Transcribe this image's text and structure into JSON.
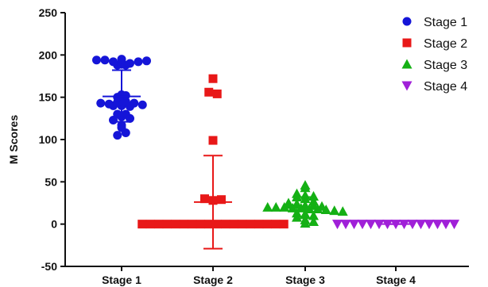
{
  "chart_data": {
    "type": "scatter",
    "title": "",
    "xlabel": "",
    "ylabel": "M Scores",
    "ylim": [
      -50,
      250
    ],
    "yticks": [
      "250",
      "200",
      "150",
      "100",
      "50",
      "0",
      "-50"
    ],
    "categories": [
      "Stage 1",
      "Stage 2",
      "Stage 3",
      "Stage 4"
    ],
    "grid": false,
    "legend_position": "top-right",
    "series": [
      {
        "name": "Stage 1",
        "color": "#1515d8",
        "marker": "circle",
        "mean": 151,
        "sd_upper": 182,
        "sd_lower": 121,
        "values": [
          194,
          194,
          192,
          189,
          188,
          188,
          190,
          192,
          193,
          195,
          153,
          150,
          152,
          140,
          140,
          143,
          142,
          144,
          145,
          139,
          143,
          141,
          130,
          130,
          123,
          127,
          125,
          114,
          117,
          105,
          108
        ]
      },
      {
        "name": "Stage 2",
        "color": "#e81818",
        "marker": "square",
        "mean": 26,
        "sd_upper": 81,
        "sd_lower": -29,
        "values": [
          172,
          156,
          154,
          99,
          30,
          28,
          29,
          0,
          0,
          0,
          0,
          0,
          0,
          0,
          0,
          0,
          0,
          0,
          0,
          0,
          0,
          0,
          0,
          0,
          0
        ]
      },
      {
        "name": "Stage 3",
        "color": "#14b014",
        "marker": "triangle-up",
        "mean": 19,
        "sd_upper": 32,
        "sd_lower": 7,
        "values": [
          46,
          43,
          36,
          34,
          33,
          32,
          30,
          27,
          25,
          24,
          22,
          22,
          21,
          20,
          20,
          20,
          19,
          19,
          18,
          18,
          17,
          16,
          15,
          13,
          12,
          10,
          8,
          5,
          3,
          1
        ]
      },
      {
        "name": "Stage 4",
        "color": "#a020d8",
        "marker": "triangle-down",
        "mean": 0,
        "sd_upper": 0,
        "sd_lower": 0,
        "values": [
          0,
          0,
          0,
          0,
          0,
          0,
          0,
          0,
          0,
          0,
          0,
          0,
          0,
          0,
          0
        ]
      }
    ]
  }
}
